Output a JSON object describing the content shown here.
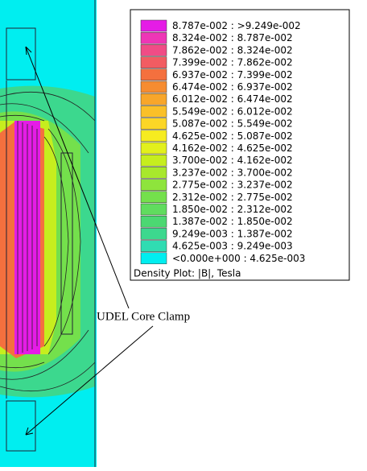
{
  "legend": {
    "title": "Density Plot: |B|, Tesla",
    "entries": [
      {
        "label": "8.787e-002 : >9.249e-002",
        "color": "#e51ce6"
      },
      {
        "label": "8.324e-002 : 8.787e-002",
        "color": "#ee36b6"
      },
      {
        "label": "7.862e-002 : 8.324e-002",
        "color": "#f04c86"
      },
      {
        "label": "7.399e-002 : 7.862e-002",
        "color": "#f25c62"
      },
      {
        "label": "6.937e-002 : 7.399e-002",
        "color": "#f4703e"
      },
      {
        "label": "6.474e-002 : 6.937e-002",
        "color": "#f68c30"
      },
      {
        "label": "6.012e-002 : 6.474e-002",
        "color": "#f8a62a"
      },
      {
        "label": "5.549e-002 : 6.012e-002",
        "color": "#fac028"
      },
      {
        "label": "5.087e-002 : 5.549e-002",
        "color": "#fcd626"
      },
      {
        "label": "4.625e-002 : 5.087e-002",
        "color": "#f6ec20"
      },
      {
        "label": "4.162e-002 : 4.625e-002",
        "color": "#e2f01c"
      },
      {
        "label": "3.700e-002 : 4.162e-002",
        "color": "#c6ee1e"
      },
      {
        "label": "3.237e-002 : 3.700e-002",
        "color": "#a8e82c"
      },
      {
        "label": "2.775e-002 : 3.237e-002",
        "color": "#8ee43c"
      },
      {
        "label": "2.312e-002 : 2.775e-002",
        "color": "#74e04c"
      },
      {
        "label": "1.850e-002 : 2.312e-002",
        "color": "#60dc5e"
      },
      {
        "label": "1.387e-002 : 1.850e-002",
        "color": "#4cd872"
      },
      {
        "label": "9.249e-003 : 1.387e-002",
        "color": "#3cd88e"
      },
      {
        "label": "4.625e-003 : 9.249e-003",
        "color": "#30dcb2"
      },
      {
        "label": "<0.000e+000 : 4.625e-003",
        "color": "#00eef0"
      }
    ]
  },
  "annotation": "UDEL Core Clamp"
}
